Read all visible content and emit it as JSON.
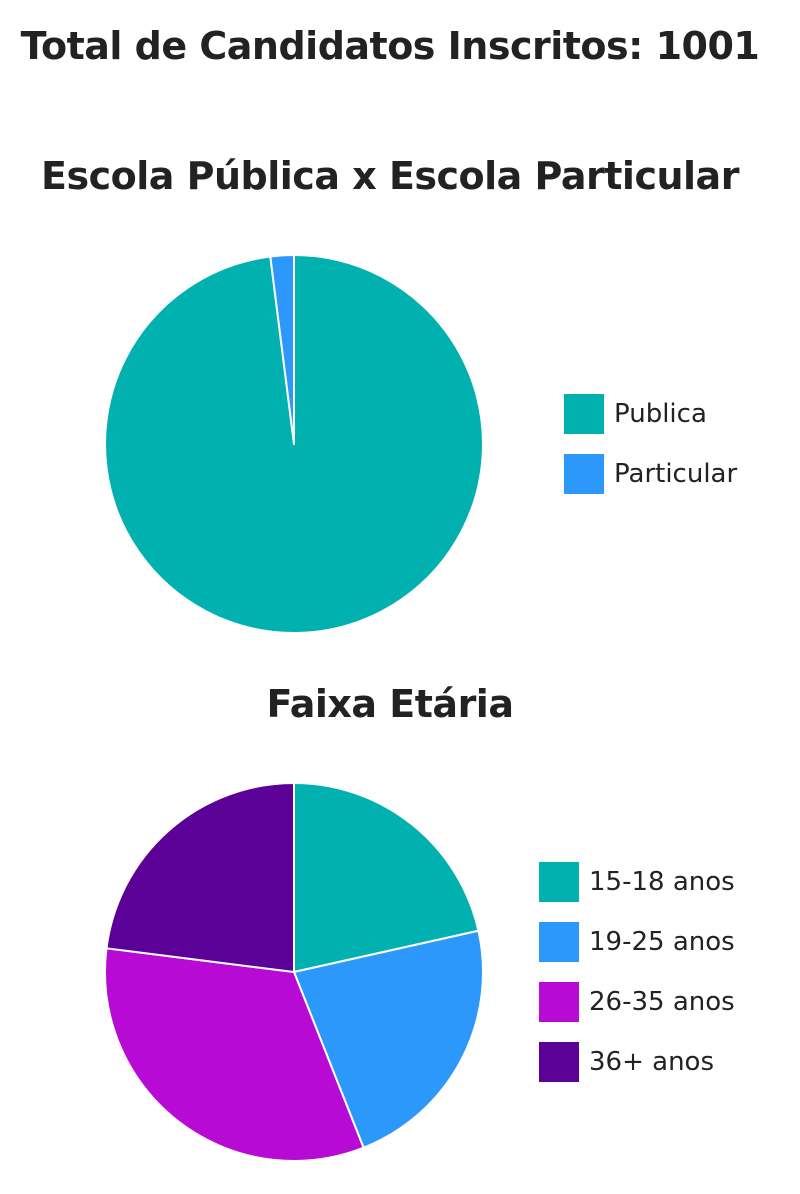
{
  "header": {
    "title": "Total de Candidatos Inscritos: 1001"
  },
  "chart_data": [
    {
      "type": "pie",
      "title": "Escola Pública x Escola Particular",
      "categories": [
        "Publica",
        "Particular"
      ],
      "values": [
        98,
        2
      ],
      "colors": [
        "#00B1B0",
        "#2C98FC"
      ],
      "legend_position": "right",
      "start_angle": "top",
      "direction": "clockwise"
    },
    {
      "type": "pie",
      "title": "Faixa Etária",
      "categories": [
        "15-18 anos",
        "19-25 anos",
        "26-35 anos",
        "36+ anos"
      ],
      "values": [
        21.5,
        22.5,
        33,
        23
      ],
      "colors": [
        "#00B1B0",
        "#2C98FC",
        "#B70AD5",
        "#5B0197"
      ],
      "legend_position": "right",
      "start_angle": "top",
      "direction": "clockwise"
    }
  ]
}
